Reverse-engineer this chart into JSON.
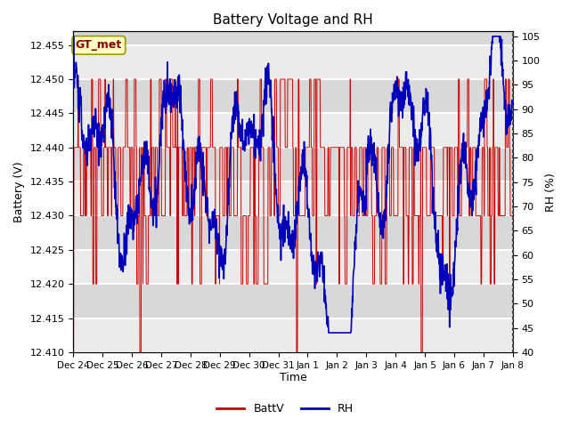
{
  "title": "Battery Voltage and RH",
  "xlabel": "Time",
  "ylabel_left": "Battery (V)",
  "ylabel_right": "RH (%)",
  "annotation": "GT_met",
  "ylim_left": [
    12.41,
    12.457
  ],
  "ylim_right": [
    40,
    106
  ],
  "yticks_left": [
    12.41,
    12.415,
    12.42,
    12.425,
    12.43,
    12.435,
    12.44,
    12.445,
    12.45,
    12.455
  ],
  "yticks_right": [
    40,
    45,
    50,
    55,
    60,
    65,
    70,
    75,
    80,
    85,
    90,
    95,
    100,
    105
  ],
  "xtick_labels": [
    "Dec 24",
    "Dec 25",
    "Dec 26",
    "Dec 27",
    "Dec 28",
    "Dec 29",
    "Dec 30",
    "Dec 31",
    "Jan 1",
    "Jan 2",
    "Jan 3",
    "Jan 4",
    "Jan 5",
    "Jan 6",
    "Jan 7",
    "Jan 8"
  ],
  "n_days": 15,
  "background_color": "#ffffff",
  "plot_bg_color": "#d8d8d8",
  "alternating_band_color": "#ebebeb",
  "grid_color": "#ffffff",
  "red_color": "#cc0000",
  "blue_color": "#0000bb",
  "legend_entries": [
    "BattV",
    "RH"
  ],
  "annotation_facecolor": "#ffffc0",
  "annotation_edgecolor": "#999900",
  "annotation_textcolor": "#880000"
}
